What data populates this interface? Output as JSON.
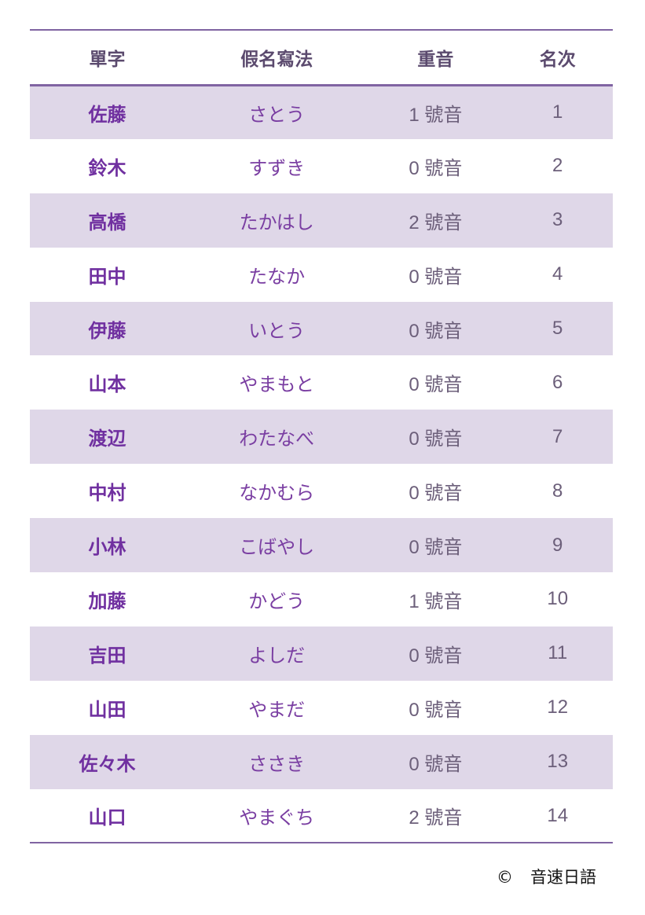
{
  "headers": [
    "單字",
    "假名寫法",
    "重音",
    "名次"
  ],
  "rows": [
    [
      "佐藤",
      "さとう",
      "1 號音",
      "1"
    ],
    [
      "鈴木",
      "すずき",
      "0 號音",
      "2"
    ],
    [
      "高橋",
      "たかはし",
      "2 號音",
      "3"
    ],
    [
      "田中",
      "たなか",
      "0 號音",
      "4"
    ],
    [
      "伊藤",
      "いとう",
      "0 號音",
      "5"
    ],
    [
      "山本",
      "やまもと",
      "0 號音",
      "6"
    ],
    [
      "渡辺",
      "わたなべ",
      "0 號音",
      "7"
    ],
    [
      "中村",
      "なかむら",
      "0 號音",
      "8"
    ],
    [
      "小林",
      "こばやし",
      "0 號音",
      "9"
    ],
    [
      "加藤",
      "かどう",
      "1 號音",
      "10"
    ],
    [
      "吉田",
      "よしだ",
      "0 號音",
      "11"
    ],
    [
      "山田",
      "やまだ",
      "0 號音",
      "12"
    ],
    [
      "佐々木",
      "ささき",
      "0 號音",
      "13"
    ],
    [
      "山口",
      "やまぐち",
      "2 號音",
      "14"
    ]
  ],
  "footer": {
    "copyright": "©",
    "brand": "音速日語"
  },
  "colors": {
    "accent": "#7030a0",
    "stripe": "#dfd7e8",
    "rule": "#8064a2"
  }
}
